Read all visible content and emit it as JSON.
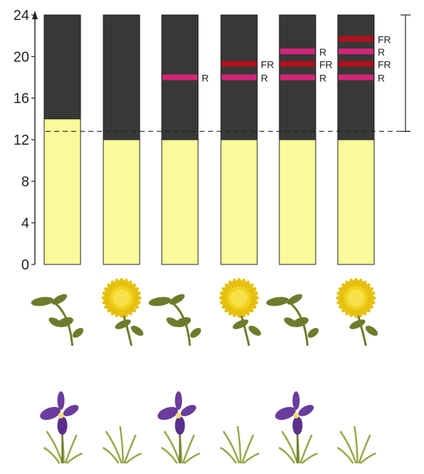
{
  "chart_data": {
    "type": "bar",
    "y_axis": {
      "range": [
        0,
        24
      ],
      "ticks": [
        "0",
        "4",
        "8",
        "12",
        "16",
        "20",
        "24"
      ]
    },
    "bars": [
      {
        "light_hours": 14,
        "night_hours": 10,
        "flashes": []
      },
      {
        "light_hours": 12,
        "night_hours": 12,
        "flashes": []
      },
      {
        "light_hours": 12,
        "night_hours": 12,
        "flashes": [
          {
            "hour": 18,
            "label": "R"
          }
        ]
      },
      {
        "light_hours": 12,
        "night_hours": 12,
        "flashes": [
          {
            "hour": 18,
            "label": "R"
          },
          {
            "hour": 19.3,
            "label": "FR"
          }
        ]
      },
      {
        "light_hours": 12,
        "night_hours": 12,
        "flashes": [
          {
            "hour": 18,
            "label": "R"
          },
          {
            "hour": 19.3,
            "label": "FR"
          },
          {
            "hour": 20.5,
            "label": "R"
          }
        ]
      },
      {
        "light_hours": 12,
        "night_hours": 12,
        "flashes": [
          {
            "hour": 18,
            "label": "R"
          },
          {
            "hour": 19.3,
            "label": "FR"
          },
          {
            "hour": 20.5,
            "label": "R"
          },
          {
            "hour": 21.7,
            "label": "FR"
          }
        ]
      }
    ],
    "critical_night_length_hours": 11,
    "reference_line_hour": 12.8,
    "short_day_plant_flowering": [
      false,
      true,
      false,
      true,
      false,
      true
    ],
    "long_day_plant_flowering": [
      true,
      false,
      true,
      false,
      true,
      false
    ],
    "colors": {
      "light": "#fafa9b",
      "dark": "#383838",
      "red_flash": "#d4247a",
      "far_red_flash": "#b0101c",
      "flower_yellow": "#f2d21c",
      "leaf_green": "#6f7b2c",
      "iris_purple": "#6a3c9e"
    }
  }
}
